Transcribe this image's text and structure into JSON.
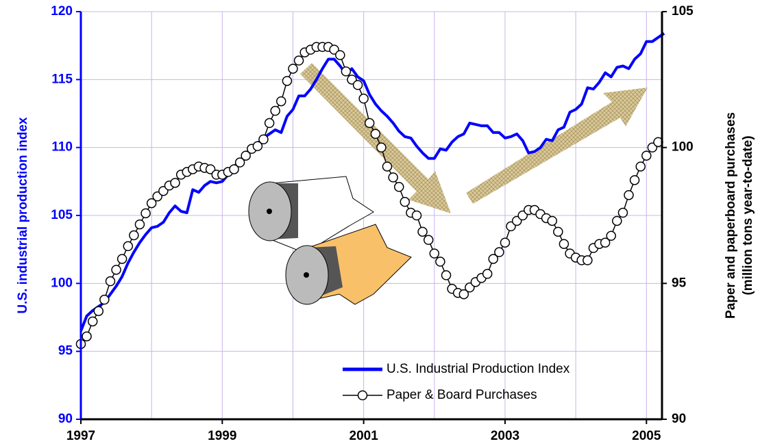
{
  "chart_data": {
    "type": "line",
    "y_axis_label": "U.S. industrial production index",
    "y2_axis_label": [
      "Paper and paperboard purchases",
      "(million tons year-to-date)"
    ],
    "x": [
      1997,
      1997.083,
      1997.167,
      1997.25,
      1997.333,
      1997.417,
      1997.5,
      1997.583,
      1997.667,
      1997.75,
      1997.833,
      1997.917,
      1998,
      1998.083,
      1998.167,
      1998.25,
      1998.333,
      1998.417,
      1998.5,
      1998.583,
      1998.667,
      1998.75,
      1998.833,
      1998.917,
      1999,
      1999.083,
      1999.167,
      1999.25,
      1999.333,
      1999.417,
      1999.5,
      1999.583,
      1999.667,
      1999.75,
      1999.833,
      1999.917,
      2000,
      2000.083,
      2000.167,
      2000.25,
      2000.333,
      2000.417,
      2000.5,
      2000.583,
      2000.667,
      2000.75,
      2000.833,
      2000.917,
      2001,
      2001.083,
      2001.167,
      2001.25,
      2001.333,
      2001.417,
      2001.5,
      2001.583,
      2001.667,
      2001.75,
      2001.833,
      2001.917,
      2002,
      2002.083,
      2002.167,
      2002.25,
      2002.333,
      2002.417,
      2002.5,
      2002.583,
      2002.667,
      2002.75,
      2002.833,
      2002.917,
      2003,
      2003.083,
      2003.167,
      2003.25,
      2003.333,
      2003.417,
      2003.5,
      2003.583,
      2003.667,
      2003.75,
      2003.833,
      2003.917,
      2004,
      2004.083,
      2004.167,
      2004.25,
      2004.333,
      2004.417,
      2004.5,
      2004.583,
      2004.667,
      2004.75,
      2004.833,
      2004.917,
      2005,
      2005.083,
      2005.167,
      2005.25
    ],
    "series": [
      {
        "name": "U.S. Industrial Production Index",
        "color": "#0000ff",
        "axis": "y",
        "values": [
          96.5,
          97.6,
          98.0,
          98.3,
          98.6,
          99.2,
          99.8,
          100.5,
          101.5,
          102.3,
          103.0,
          103.6,
          104.1,
          104.2,
          104.5,
          105.2,
          105.7,
          105.3,
          105.2,
          106.9,
          106.7,
          107.2,
          107.5,
          107.4,
          107.5,
          108.0,
          108.6,
          109.0,
          109.5,
          110.0,
          110.3,
          110.7,
          111.0,
          111.3,
          111.1,
          112.3,
          112.8,
          113.8,
          113.8,
          114.3,
          115.0,
          115.8,
          116.5,
          116.5,
          116.0,
          115.4,
          115.8,
          115.2,
          114.9,
          113.9,
          113.2,
          112.7,
          112.3,
          111.8,
          111.2,
          110.8,
          110.7,
          110.1,
          109.6,
          109.2,
          109.2,
          109.9,
          109.8,
          110.4,
          110.8,
          111.0,
          111.8,
          111.7,
          111.6,
          111.6,
          111.1,
          111.1,
          110.7,
          110.8,
          111.0,
          110.5,
          109.6,
          109.7,
          110.0,
          110.6,
          110.5,
          111.3,
          111.5,
          112.6,
          112.8,
          113.2,
          114.4,
          114.3,
          114.8,
          115.5,
          115.2,
          115.9,
          116.0,
          115.8,
          116.5,
          116.9,
          117.8,
          117.8,
          118.1,
          118.4
        ]
      },
      {
        "name": "Paper & Board Purchases",
        "color": "#000000",
        "axis": "y2",
        "marker": "circle",
        "values": [
          92.77,
          93.05,
          93.6,
          93.98,
          94.4,
          95.08,
          95.5,
          95.9,
          96.37,
          96.77,
          97.17,
          97.58,
          97.95,
          98.2,
          98.4,
          98.6,
          98.7,
          99.0,
          99.1,
          99.2,
          99.3,
          99.25,
          99.2,
          99.0,
          99.0,
          99.1,
          99.2,
          99.45,
          99.7,
          99.95,
          100.05,
          100.3,
          100.9,
          101.35,
          101.7,
          102.45,
          102.9,
          103.2,
          103.5,
          103.6,
          103.7,
          103.7,
          103.7,
          103.6,
          103.4,
          102.8,
          102.5,
          102.3,
          101.8,
          100.9,
          100.5,
          100.0,
          99.3,
          98.9,
          98.55,
          98.0,
          97.6,
          97.5,
          96.9,
          96.6,
          96.1,
          95.8,
          95.3,
          94.8,
          94.65,
          94.6,
          94.85,
          95.05,
          95.2,
          95.35,
          95.9,
          96.15,
          96.5,
          97.1,
          97.3,
          97.5,
          97.7,
          97.7,
          97.55,
          97.4,
          97.3,
          96.9,
          96.45,
          96.1,
          95.95,
          95.85,
          95.85,
          96.3,
          96.45,
          96.5,
          96.75,
          97.3,
          97.6,
          98.25,
          98.8,
          99.3,
          99.7,
          100.0,
          100.2,
          null
        ]
      }
    ],
    "xlim": [
      1997,
      2005.22
    ],
    "xticks": [
      1997,
      1999,
      2001,
      2003,
      2005
    ],
    "x_gridlines": [
      1997,
      1998,
      1999,
      2000,
      2001,
      2002,
      2003,
      2004,
      2005
    ],
    "ylim": [
      90,
      120
    ],
    "yticks": [
      90,
      95,
      100,
      105,
      110,
      115,
      120
    ],
    "y2lim": [
      90,
      105
    ],
    "y2ticks": [
      90,
      95,
      100,
      105
    ],
    "grid": true,
    "grid_color": "#c8b4ec",
    "y_axis_color": "#0000ff",
    "legend": "lower right"
  }
}
